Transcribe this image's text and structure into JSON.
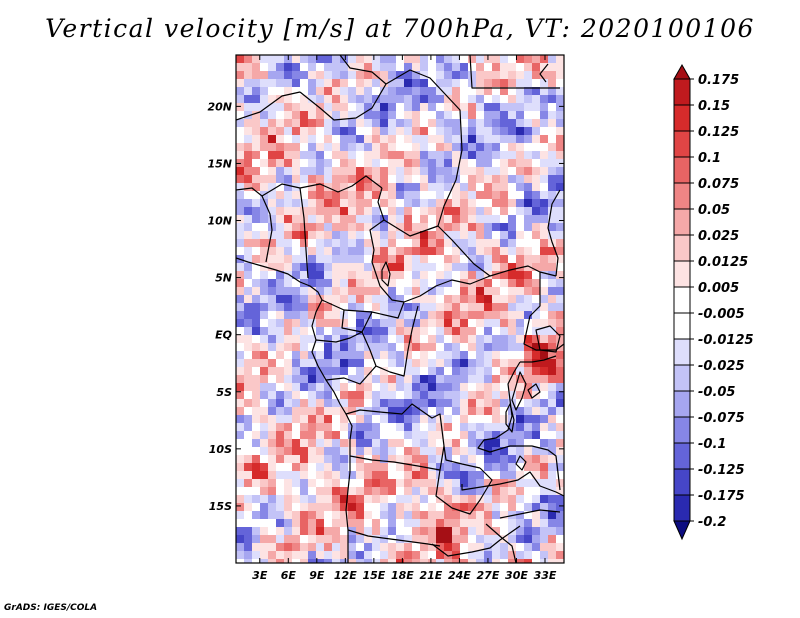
{
  "title": "Vertical velocity [m/s] at 700hPa, VT: 2020100106",
  "credit": "GrADS: IGES/COLA",
  "map": {
    "lat_range": [
      -20,
      24.5
    ],
    "lon_range": [
      0.5,
      35
    ],
    "lat_ticks": [
      {
        "value": 20,
        "label": "20N"
      },
      {
        "value": 15,
        "label": "15N"
      },
      {
        "value": 10,
        "label": "10N"
      },
      {
        "value": 5,
        "label": "5N"
      },
      {
        "value": 0,
        "label": "EQ"
      },
      {
        "value": -5,
        "label": "5S"
      },
      {
        "value": -10,
        "label": "10S"
      },
      {
        "value": -15,
        "label": "15S"
      }
    ],
    "lon_ticks": [
      {
        "value": 3,
        "label": "3E"
      },
      {
        "value": 6,
        "label": "6E"
      },
      {
        "value": 9,
        "label": "9E"
      },
      {
        "value": 12,
        "label": "12E"
      },
      {
        "value": 15,
        "label": "15E"
      },
      {
        "value": 18,
        "label": "18E"
      },
      {
        "value": 21,
        "label": "21E"
      },
      {
        "value": 24,
        "label": "24E"
      },
      {
        "value": 27,
        "label": "27E"
      },
      {
        "value": 30,
        "label": "30E"
      },
      {
        "value": 33,
        "label": "33E"
      }
    ]
  },
  "colorbar": {
    "levels": [
      {
        "label": "0.175",
        "color": "#a50f15"
      },
      {
        "label": "0.15",
        "color": "#c01a1e"
      },
      {
        "label": "0.125",
        "color": "#d62b2b"
      },
      {
        "label": "0.1",
        "color": "#e04545"
      },
      {
        "label": "0.075",
        "color": "#e86464"
      },
      {
        "label": "0.05",
        "color": "#ef8585"
      },
      {
        "label": "0.025",
        "color": "#f5a8a8"
      },
      {
        "label": "0.0125",
        "color": "#fac8c8"
      },
      {
        "label": "0.005",
        "color": "#fde3e3"
      },
      {
        "label": "-0.005",
        "color": "#ffffff"
      },
      {
        "label": "-0.0125",
        "color": "#dedefc"
      },
      {
        "label": "-0.025",
        "color": "#c3c3f7"
      },
      {
        "label": "-0.05",
        "color": "#a6a6f0"
      },
      {
        "label": "-0.075",
        "color": "#8686e6"
      },
      {
        "label": "-0.1",
        "color": "#6464d9"
      },
      {
        "label": "-0.125",
        "color": "#4646c8"
      },
      {
        "label": "-0.175",
        "color": "#2a2ab0"
      },
      {
        "label": "-0.2",
        "color": "#141496"
      }
    ],
    "bottom_color": "#0c0c80"
  }
}
